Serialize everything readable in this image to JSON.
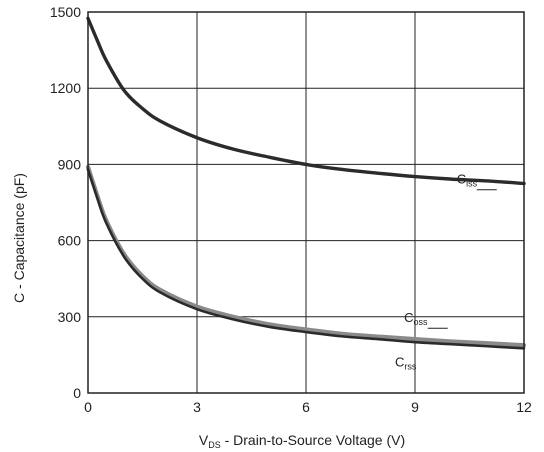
{
  "chart_data": {
    "type": "line",
    "title": "",
    "xlabel": {
      "prefix": "V",
      "sub": "DS",
      "rest": " - Drain-to-Source Voltage (V)"
    },
    "ylabel": "C - Capacitance (pF)",
    "xlim": [
      0,
      12
    ],
    "ylim": [
      0,
      1500
    ],
    "x_ticks": [
      0,
      3,
      6,
      9,
      12
    ],
    "y_ticks": [
      0,
      300,
      600,
      900,
      1200,
      1500
    ],
    "grid": true,
    "legend": "inline labels at right end of curves",
    "series": [
      {
        "name": "Ciss",
        "label_main": "C",
        "label_sub": "iss",
        "color": "#2b2b2b",
        "x": [
          0,
          0.25,
          0.5,
          1,
          1.5,
          2,
          3,
          4,
          5,
          6,
          7,
          8,
          9,
          10,
          11,
          12
        ],
        "y": [
          1475,
          1390,
          1310,
          1190,
          1120,
          1070,
          1005,
          960,
          928,
          900,
          880,
          865,
          852,
          842,
          835,
          825
        ]
      },
      {
        "name": "Coss",
        "label_main": "C",
        "label_sub": "oss",
        "color": "#8a8a8a",
        "x": [
          0,
          0.25,
          0.5,
          1,
          1.5,
          2,
          3,
          4,
          5,
          6,
          7,
          8,
          9,
          10,
          11,
          12
        ],
        "y": [
          890,
          780,
          680,
          545,
          460,
          405,
          340,
          300,
          270,
          250,
          233,
          222,
          212,
          203,
          196,
          188
        ]
      },
      {
        "name": "Crss",
        "label_main": "C",
        "label_sub": "rss",
        "color": "#2b2b2b",
        "x": [
          0,
          0.25,
          0.5,
          1,
          1.5,
          2,
          3,
          4,
          5,
          6,
          7,
          8,
          9,
          10,
          11,
          12
        ],
        "y": [
          880,
          770,
          670,
          535,
          450,
          395,
          330,
          290,
          260,
          240,
          223,
          212,
          200,
          192,
          184,
          176
        ]
      }
    ]
  }
}
